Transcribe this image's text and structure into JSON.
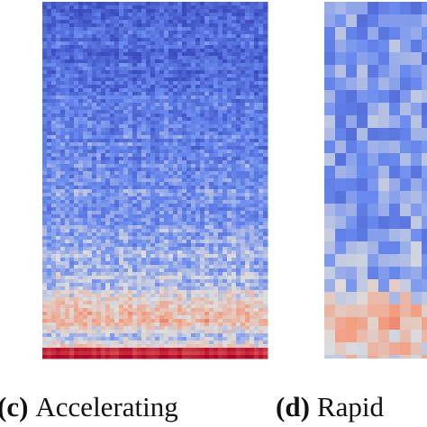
{
  "panels": [
    {
      "tag": "(c)",
      "label": "Accelerating"
    },
    {
      "tag": "(d)",
      "label": "Rapid"
    }
  ]
}
